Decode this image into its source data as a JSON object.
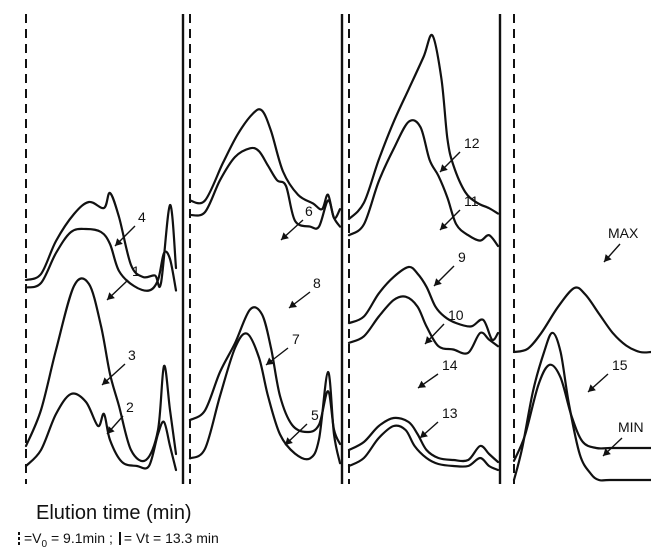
{
  "chart_data": {
    "type": "line",
    "title": "",
    "xlabel": "Elution time (min)",
    "ylabel": "",
    "legend": {
      "v0_text": "=V",
      "v0_sub": "0",
      "v0_rest": " =  9.1min ;",
      "vt_text": "= Vt = 13.3 min"
    },
    "panels": [
      {
        "traces": [
          {
            "label": "4",
            "points": [
              [
                0,
                0.12
              ],
              [
                0.1,
                0.16
              ],
              [
                0.2,
                0.38
              ],
              [
                0.32,
                0.56
              ],
              [
                0.42,
                0.64
              ],
              [
                0.52,
                0.6
              ],
              [
                0.56,
                0.7
              ],
              [
                0.62,
                0.54
              ],
              [
                0.7,
                0.22
              ],
              [
                0.78,
                0.14
              ],
              [
                0.86,
                0.15
              ],
              [
                0.9,
                0.1
              ],
              [
                0.96,
                0.62
              ],
              [
                1,
                0.2
              ]
            ]
          },
          {
            "label": "1",
            "points": [
              [
                0,
                0.07
              ],
              [
                0.1,
                0.1
              ],
              [
                0.2,
                0.3
              ],
              [
                0.3,
                0.44
              ],
              [
                0.4,
                0.46
              ],
              [
                0.5,
                0.44
              ],
              [
                0.56,
                0.36
              ],
              [
                0.62,
                0.18
              ],
              [
                0.72,
                0.08
              ],
              [
                0.82,
                0.05
              ],
              [
                0.88,
                0.12
              ],
              [
                0.92,
                0.3
              ],
              [
                0.96,
                0.26
              ],
              [
                1,
                0.05
              ]
            ]
          }
        ]
      },
      {
        "traces": [
          {
            "label": "3",
            "points": [
              [
                0,
                0.12
              ],
              [
                0.1,
                0.3
              ],
              [
                0.2,
                0.6
              ],
              [
                0.32,
                0.92
              ],
              [
                0.42,
                0.93
              ],
              [
                0.5,
                0.72
              ],
              [
                0.56,
                0.48
              ],
              [
                0.62,
                0.32
              ],
              [
                0.7,
                0.1
              ],
              [
                0.8,
                0.05
              ],
              [
                0.88,
                0.2
              ],
              [
                0.92,
                0.52
              ],
              [
                0.96,
                0.3
              ],
              [
                1,
                0.08
              ]
            ]
          },
          {
            "label": "2",
            "points": [
              [
                0,
                0.02
              ],
              [
                0.1,
                0.1
              ],
              [
                0.2,
                0.28
              ],
              [
                0.3,
                0.38
              ],
              [
                0.4,
                0.34
              ],
              [
                0.48,
                0.22
              ],
              [
                0.52,
                0.28
              ],
              [
                0.56,
                0.15
              ],
              [
                0.64,
                0.04
              ],
              [
                0.74,
                0.02
              ],
              [
                0.82,
                0.02
              ],
              [
                0.88,
                0.18
              ],
              [
                0.92,
                0.24
              ],
              [
                0.96,
                0.12
              ],
              [
                1,
                0.0
              ]
            ]
          }
        ]
      },
      {
        "traces": [
          {
            "label": "6",
            "points": [
              [
                0,
                0.3
              ],
              [
                0.1,
                0.3
              ],
              [
                0.22,
                0.56
              ],
              [
                0.32,
                0.76
              ],
              [
                0.42,
                0.9
              ],
              [
                0.48,
                0.92
              ],
              [
                0.54,
                0.78
              ],
              [
                0.62,
                0.5
              ],
              [
                0.72,
                0.34
              ],
              [
                0.82,
                0.28
              ],
              [
                0.88,
                0.24
              ],
              [
                0.92,
                0.34
              ],
              [
                0.96,
                0.18
              ],
              [
                1,
                0.24
              ]
            ]
          },
          {
            "label": "8",
            "points": [
              [
                0,
                0.2
              ],
              [
                0.1,
                0.22
              ],
              [
                0.2,
                0.44
              ],
              [
                0.3,
                0.6
              ],
              [
                0.4,
                0.66
              ],
              [
                0.46,
                0.64
              ],
              [
                0.52,
                0.54
              ],
              [
                0.58,
                0.44
              ],
              [
                0.64,
                0.4
              ],
              [
                0.7,
                0.16
              ],
              [
                0.8,
                0.12
              ],
              [
                0.86,
                0.12
              ],
              [
                0.92,
                0.3
              ],
              [
                0.96,
                0.18
              ],
              [
                1,
                0.12
              ]
            ]
          }
        ]
      },
      {
        "traces": [
          {
            "label": "7",
            "points": [
              [
                0,
                0.2
              ],
              [
                0.1,
                0.24
              ],
              [
                0.2,
                0.4
              ],
              [
                0.3,
                0.52
              ],
              [
                0.4,
                0.66
              ],
              [
                0.48,
                0.64
              ],
              [
                0.54,
                0.5
              ],
              [
                0.6,
                0.3
              ],
              [
                0.68,
                0.18
              ],
              [
                0.78,
                0.15
              ],
              [
                0.86,
                0.18
              ],
              [
                0.92,
                0.32
              ],
              [
                0.96,
                0.16
              ],
              [
                1,
                0.1
              ]
            ]
          },
          {
            "label": "5",
            "points": [
              [
                0,
                0.04
              ],
              [
                0.1,
                0.08
              ],
              [
                0.2,
                0.3
              ],
              [
                0.3,
                0.5
              ],
              [
                0.38,
                0.56
              ],
              [
                0.46,
                0.46
              ],
              [
                0.52,
                0.3
              ],
              [
                0.6,
                0.14
              ],
              [
                0.7,
                0.06
              ],
              [
                0.8,
                0.04
              ],
              [
                0.86,
                0.12
              ],
              [
                0.92,
                0.4
              ],
              [
                0.96,
                0.14
              ],
              [
                1,
                0.02
              ]
            ]
          }
        ]
      },
      {
        "traces": [
          {
            "label": "12",
            "points": [
              [
                0,
                0.3
              ],
              [
                0.1,
                0.36
              ],
              [
                0.2,
                0.52
              ],
              [
                0.3,
                0.66
              ],
              [
                0.4,
                0.78
              ],
              [
                0.5,
                0.9
              ],
              [
                0.56,
                0.98
              ],
              [
                0.62,
                0.82
              ],
              [
                0.66,
                0.6
              ],
              [
                0.7,
                0.5
              ],
              [
                0.78,
                0.4
              ],
              [
                0.86,
                0.36
              ],
              [
                0.94,
                0.34
              ],
              [
                1,
                0.32
              ]
            ]
          },
          {
            "label": "11",
            "points": [
              [
                0,
                0.24
              ],
              [
                0.1,
                0.28
              ],
              [
                0.2,
                0.44
              ],
              [
                0.3,
                0.56
              ],
              [
                0.4,
                0.66
              ],
              [
                0.48,
                0.64
              ],
              [
                0.54,
                0.52
              ],
              [
                0.6,
                0.46
              ],
              [
                0.66,
                0.38
              ],
              [
                0.72,
                0.28
              ],
              [
                0.8,
                0.24
              ],
              [
                0.88,
                0.22
              ],
              [
                0.94,
                0.24
              ],
              [
                1,
                0.2
              ]
            ]
          }
        ]
      },
      {
        "traces": [
          {
            "label": "9",
            "points": [
              [
                0,
                0.26
              ],
              [
                0.1,
                0.3
              ],
              [
                0.2,
                0.44
              ],
              [
                0.3,
                0.54
              ],
              [
                0.4,
                0.6
              ],
              [
                0.46,
                0.56
              ],
              [
                0.52,
                0.48
              ],
              [
                0.58,
                0.36
              ],
              [
                0.64,
                0.3
              ],
              [
                0.72,
                0.26
              ],
              [
                0.82,
                0.24
              ],
              [
                0.9,
                0.28
              ],
              [
                0.96,
                0.16
              ],
              [
                1,
                0.2
              ]
            ]
          },
          {
            "label": "10",
            "points": [
              [
                0,
                0.14
              ],
              [
                0.1,
                0.18
              ],
              [
                0.2,
                0.3
              ],
              [
                0.3,
                0.4
              ],
              [
                0.38,
                0.42
              ],
              [
                0.46,
                0.36
              ],
              [
                0.52,
                0.24
              ],
              [
                0.6,
                0.12
              ],
              [
                0.7,
                0.1
              ],
              [
                0.8,
                0.08
              ],
              [
                0.88,
                0.2
              ],
              [
                0.94,
                0.16
              ],
              [
                1,
                0.12
              ]
            ]
          }
        ]
      },
      {
        "traces": [
          {
            "label": "14",
            "points": [
              [
                0,
                0.1
              ],
              [
                0.1,
                0.14
              ],
              [
                0.2,
                0.22
              ],
              [
                0.3,
                0.26
              ],
              [
                0.4,
                0.24
              ],
              [
                0.46,
                0.18
              ],
              [
                0.52,
                0.1
              ],
              [
                0.6,
                0.06
              ],
              [
                0.7,
                0.05
              ],
              [
                0.8,
                0.05
              ],
              [
                0.88,
                0.12
              ],
              [
                0.94,
                0.08
              ],
              [
                1,
                0.04
              ]
            ]
          },
          {
            "label": "13",
            "points": [
              [
                0,
                0.02
              ],
              [
                0.1,
                0.06
              ],
              [
                0.2,
                0.16
              ],
              [
                0.3,
                0.22
              ],
              [
                0.38,
                0.2
              ],
              [
                0.44,
                0.12
              ],
              [
                0.52,
                0.06
              ],
              [
                0.6,
                0.03
              ],
              [
                0.7,
                0.02
              ],
              [
                0.8,
                0.02
              ],
              [
                0.88,
                0.06
              ],
              [
                0.94,
                0.02
              ],
              [
                1,
                0.0
              ]
            ]
          }
        ]
      },
      {
        "traces": [
          {
            "label": "MAX",
            "points": [
              [
                0,
                0.4
              ],
              [
                0.1,
                0.41
              ],
              [
                0.2,
                0.46
              ],
              [
                0.32,
                0.54
              ],
              [
                0.44,
                0.6
              ],
              [
                0.52,
                0.58
              ],
              [
                0.62,
                0.52
              ],
              [
                0.72,
                0.46
              ],
              [
                0.82,
                0.42
              ],
              [
                0.92,
                0.4
              ],
              [
                1,
                0.4
              ]
            ]
          },
          {
            "label": "15",
            "points": [
              [
                0,
                0.06
              ],
              [
                0.08,
                0.14
              ],
              [
                0.18,
                0.3
              ],
              [
                0.26,
                0.36
              ],
              [
                0.34,
                0.32
              ],
              [
                0.42,
                0.2
              ],
              [
                0.5,
                0.12
              ],
              [
                0.6,
                0.1
              ],
              [
                0.7,
                0.1
              ],
              [
                0.8,
                0.1
              ],
              [
                0.9,
                0.1
              ],
              [
                1,
                0.1
              ]
            ]
          },
          {
            "label": "MIN",
            "points": [
              [
                0,
                0.0
              ],
              [
                0.06,
                0.1
              ],
              [
                0.14,
                0.28
              ],
              [
                0.22,
                0.4
              ],
              [
                0.28,
                0.46
              ],
              [
                0.34,
                0.4
              ],
              [
                0.4,
                0.24
              ],
              [
                0.48,
                0.08
              ],
              [
                0.56,
                0.02
              ],
              [
                0.62,
                0.0
              ],
              [
                0.7,
                0.0
              ],
              [
                1,
                0.0
              ]
            ]
          }
        ]
      }
    ],
    "labels": [
      "1",
      "2",
      "3",
      "4",
      "5",
      "6",
      "7",
      "8",
      "9",
      "10",
      "11",
      "12",
      "13",
      "14",
      "15",
      "MAX",
      "MIN"
    ]
  }
}
